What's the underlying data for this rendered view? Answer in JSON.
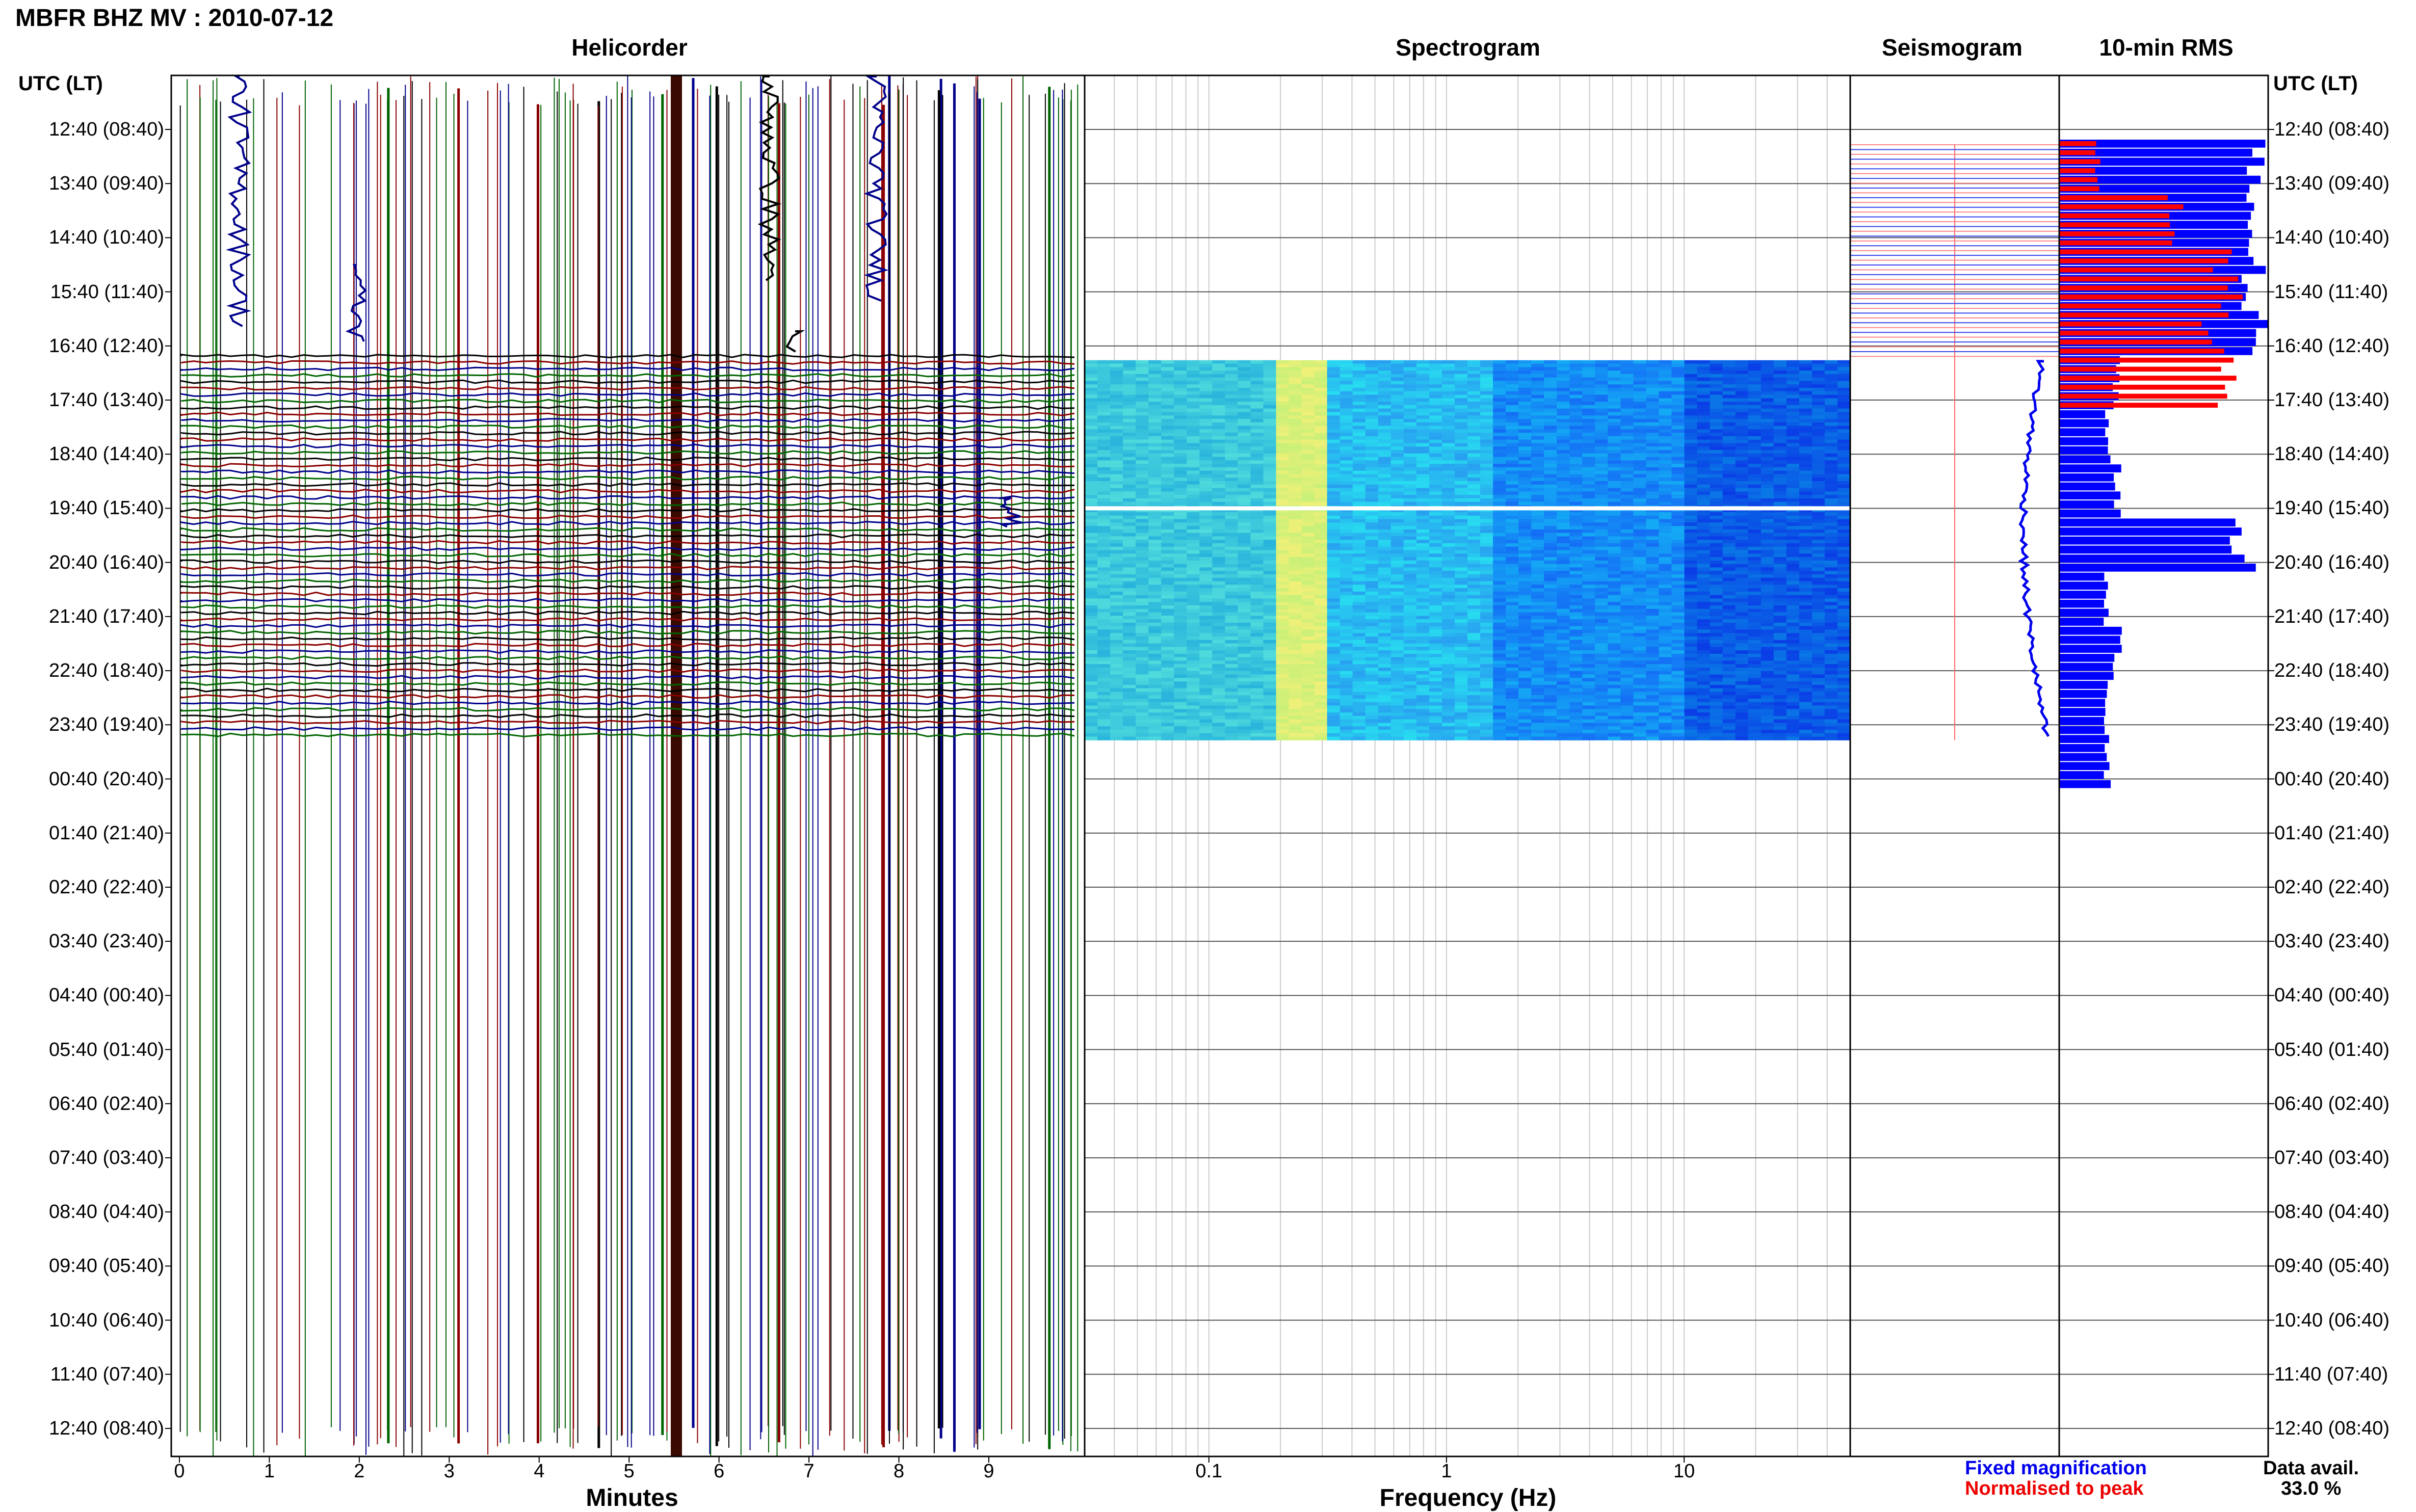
{
  "header": {
    "title": "MBFR BHZ MV : 2010-07-12"
  },
  "columns": {
    "helicorder": "Helicorder",
    "spectrogram": "Spectrogram",
    "seismogram": "Seismogram",
    "rms": "10-min RMS"
  },
  "time_axis": {
    "heading_left": "UTC (LT)",
    "heading_right": "UTC (LT)",
    "labels": [
      "12:40 (08:40)",
      "13:40 (09:40)",
      "14:40 (10:40)",
      "15:40 (11:40)",
      "16:40 (12:40)",
      "17:40 (13:40)",
      "18:40 (14:40)",
      "19:40 (15:40)",
      "20:40 (16:40)",
      "21:40 (17:40)",
      "22:40 (18:40)",
      "23:40 (19:40)",
      "00:40 (20:40)",
      "01:40 (21:40)",
      "02:40 (22:40)",
      "03:40 (23:40)",
      "04:40 (00:40)",
      "05:40 (01:40)",
      "06:40 (02:40)",
      "07:40 (03:40)",
      "08:40 (04:40)",
      "09:40 (05:40)",
      "10:40 (06:40)",
      "11:40 (07:40)",
      "12:40 (08:40)"
    ]
  },
  "helicorder_axis": {
    "title": "Minutes",
    "ticks": [
      "0",
      "1",
      "2",
      "3",
      "4",
      "5",
      "6",
      "7",
      "8",
      "9"
    ]
  },
  "spectrogram_axis": {
    "title": "Frequency (Hz)",
    "ticks": [
      "0.1",
      "1",
      "10"
    ],
    "scale": "log"
  },
  "legend": {
    "fixed": "Fixed magnification",
    "normalised": "Normalised to peak",
    "fixed_color": "#0000ee",
    "normalised_color": "#ee0000",
    "data_avail_label": "Data avail.",
    "data_avail_value": "33.0 %"
  },
  "colors": {
    "trace_black": "#000000",
    "trace_red": "#8b0000",
    "trace_blue": "#00008b",
    "trace_green": "#006400",
    "rms_fixed": "#0000ff",
    "rms_normalised": "#ff0000"
  },
  "chart_data": [
    {
      "type": "bar",
      "title": "10-min RMS",
      "categories": [
        "12:40 (08:40)",
        "13:40 (09:40)",
        "14:40 (10:40)",
        "15:40 (11:40)",
        "16:40 (12:40)",
        "17:40 (13:40)",
        "18:40 (14:40)",
        "19:40 (15:40)",
        "20:40 (16:40)",
        "21:40 (17:40)",
        "22:40 (18:40)",
        "23:40 (19:40)"
      ],
      "series": [
        {
          "name": "Fixed magnification",
          "values": [
            1.0,
            1.0,
            1.0,
            1.0,
            0.3,
            0.25,
            0.3,
            0.95,
            0.25,
            0.3,
            0.25,
            0.25
          ]
        },
        {
          "name": "Normalised to peak",
          "values": [
            0.2,
            0.6,
            0.9,
            0.85,
            0.85,
            0,
            0,
            0,
            0,
            0,
            0,
            0
          ]
        }
      ],
      "ylim": [
        0,
        1
      ]
    },
    {
      "type": "heatmap",
      "title": "Spectrogram",
      "xlabel": "Frequency (Hz)",
      "x_scale": "log",
      "xlim": [
        0.03,
        50
      ],
      "data_rows": [
        "16:40 (12:40)",
        "23:40 (19:40)"
      ]
    }
  ]
}
